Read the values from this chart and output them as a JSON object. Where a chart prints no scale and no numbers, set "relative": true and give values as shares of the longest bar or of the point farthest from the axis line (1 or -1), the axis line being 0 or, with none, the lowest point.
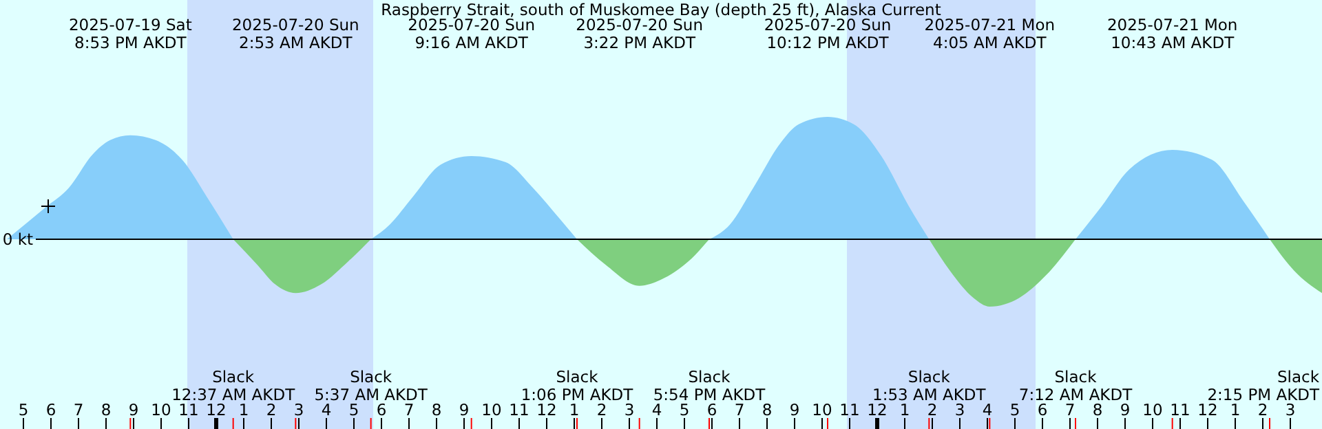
{
  "chart_data": {
    "type": "area",
    "relative": true,
    "title": "Raspberry Strait, south of Muskomee Bay (depth 25 ft), Alaska Current",
    "x": [
      "2025-07-19T16:24",
      "2025-07-19T17:48",
      "2025-07-19T18:39",
      "2025-07-19T19:30",
      "2025-07-19T20:09",
      "2025-07-19T20:53",
      "2025-07-19T21:48",
      "2025-07-19T22:48",
      "2025-07-19T23:39",
      "2025-07-20T00:37",
      "2025-07-20T01:30",
      "2025-07-20T02:09",
      "2025-07-20T02:53",
      "2025-07-20T03:48",
      "2025-07-20T04:48",
      "2025-07-20T05:37",
      "2025-07-20T06:18",
      "2025-07-20T07:09",
      "2025-07-20T08:09",
      "2025-07-20T09:16",
      "2025-07-20T10:30",
      "2025-07-20T11:30",
      "2025-07-20T12:30",
      "2025-07-20T13:06",
      "2025-07-20T14:09",
      "2025-07-20T15:22",
      "2025-07-20T16:09",
      "2025-07-20T17:09",
      "2025-07-20T17:54",
      "2025-07-20T18:39",
      "2025-07-20T19:30",
      "2025-07-20T20:30",
      "2025-07-20T21:09",
      "2025-07-20T22:12",
      "2025-07-20T23:09",
      "2025-07-21T00:09",
      "2025-07-21T01:09",
      "2025-07-21T01:53",
      "2025-07-21T02:39",
      "2025-07-21T03:30",
      "2025-07-21T04:05",
      "2025-07-21T05:09",
      "2025-07-21T06:09",
      "2025-07-21T07:12",
      "2025-07-21T08:09",
      "2025-07-21T09:09",
      "2025-07-21T10:43",
      "2025-07-21T12:09",
      "2025-07-21T13:18",
      "2025-07-21T14:15",
      "2025-07-21T15:09",
      "2025-07-21T16:09"
    ],
    "series": [
      {
        "color": "#87cefa",
        "values": [
          0,
          0.26,
          0.42,
          0.69,
          0.81,
          0.85,
          0.81,
          0.64,
          0.35,
          0,
          null,
          null,
          null,
          null,
          null,
          0,
          0.12,
          0.35,
          0.61,
          0.68,
          0.63,
          0.42,
          0.16,
          0,
          null,
          null,
          null,
          null,
          0,
          0.12,
          0.42,
          0.79,
          0.94,
          1,
          0.94,
          0.68,
          0.27,
          0,
          null,
          null,
          null,
          null,
          null,
          0,
          0.27,
          0.57,
          0.73,
          0.65,
          0.31,
          0,
          null,
          null
        ]
      },
      {
        "color": "#7fcf7f",
        "values": [
          null,
          null,
          null,
          null,
          null,
          null,
          null,
          null,
          null,
          0,
          -0.21,
          -0.37,
          -0.44,
          -0.37,
          -0.18,
          0,
          null,
          null,
          null,
          null,
          null,
          null,
          null,
          0,
          -0.21,
          -0.38,
          -0.33,
          -0.18,
          0,
          null,
          null,
          null,
          null,
          null,
          null,
          null,
          null,
          0,
          -0.26,
          -0.48,
          -0.55,
          -0.48,
          -0.29,
          0,
          null,
          null,
          null,
          null,
          null,
          0,
          -0.26,
          -0.44
        ]
      }
    ],
    "xlim": [
      "2025-07-19T16:09",
      "2025-07-21T16:09"
    ],
    "xticks": [
      {
        "value": "2025-07-19T17:00",
        "label": "5"
      },
      {
        "value": "2025-07-19T18:00",
        "label": "6"
      },
      {
        "value": "2025-07-19T19:00",
        "label": "7"
      },
      {
        "value": "2025-07-19T20:00",
        "label": "8"
      },
      {
        "value": "2025-07-19T21:00",
        "label": "9"
      },
      {
        "value": "2025-07-19T22:00",
        "label": "10"
      },
      {
        "value": "2025-07-19T23:00",
        "label": "11"
      },
      {
        "value": "2025-07-20T00:00",
        "label": "12"
      },
      {
        "value": "2025-07-20T01:00",
        "label": "1"
      },
      {
        "value": "2025-07-20T02:00",
        "label": "2"
      },
      {
        "value": "2025-07-20T03:00",
        "label": "3"
      },
      {
        "value": "2025-07-20T04:00",
        "label": "4"
      },
      {
        "value": "2025-07-20T05:00",
        "label": "5"
      },
      {
        "value": "2025-07-20T06:00",
        "label": "6"
      },
      {
        "value": "2025-07-20T07:00",
        "label": "7"
      },
      {
        "value": "2025-07-20T08:00",
        "label": "8"
      },
      {
        "value": "2025-07-20T09:00",
        "label": "9"
      },
      {
        "value": "2025-07-20T10:00",
        "label": "10"
      },
      {
        "value": "2025-07-20T11:00",
        "label": "11"
      },
      {
        "value": "2025-07-20T12:00",
        "label": "12"
      },
      {
        "value": "2025-07-20T13:00",
        "label": "1"
      },
      {
        "value": "2025-07-20T14:00",
        "label": "2"
      },
      {
        "value": "2025-07-20T15:00",
        "label": "3"
      },
      {
        "value": "2025-07-20T16:00",
        "label": "4"
      },
      {
        "value": "2025-07-20T17:00",
        "label": "5"
      },
      {
        "value": "2025-07-20T18:00",
        "label": "6"
      },
      {
        "value": "2025-07-20T19:00",
        "label": "7"
      },
      {
        "value": "2025-07-20T20:00",
        "label": "8"
      },
      {
        "value": "2025-07-20T21:00",
        "label": "9"
      },
      {
        "value": "2025-07-20T22:00",
        "label": "10"
      },
      {
        "value": "2025-07-20T23:00",
        "label": "11"
      },
      {
        "value": "2025-07-21T00:00",
        "label": "12"
      },
      {
        "value": "2025-07-21T01:00",
        "label": "1"
      },
      {
        "value": "2025-07-21T02:00",
        "label": "2"
      },
      {
        "value": "2025-07-21T03:00",
        "label": "3"
      },
      {
        "value": "2025-07-21T04:00",
        "label": "4"
      },
      {
        "value": "2025-07-21T05:00",
        "label": "5"
      },
      {
        "value": "2025-07-21T06:00",
        "label": "6"
      },
      {
        "value": "2025-07-21T07:00",
        "label": "7"
      },
      {
        "value": "2025-07-21T08:00",
        "label": "8"
      },
      {
        "value": "2025-07-21T09:00",
        "label": "9"
      },
      {
        "value": "2025-07-21T10:00",
        "label": "10"
      },
      {
        "value": "2025-07-21T11:00",
        "label": "11"
      },
      {
        "value": "2025-07-21T12:00",
        "label": "12"
      },
      {
        "value": "2025-07-21T13:00",
        "label": "1"
      },
      {
        "value": "2025-07-21T14:00",
        "label": "2"
      },
      {
        "value": "2025-07-21T15:00",
        "label": "3"
      }
    ],
    "bands": [
      {
        "axis": "x",
        "from": "2025-07-19T22:57",
        "to": "2025-07-20T05:42",
        "color": "#cce0fd"
      },
      {
        "axis": "x",
        "from": "2025-07-20T22:54",
        "to": "2025-07-21T05:45",
        "color": "#cce0fd"
      }
    ],
    "ref_lines": [
      {
        "axis": "y",
        "value": 0,
        "label": "0 kt",
        "color": "#000000"
      }
    ],
    "annotations": [
      "2025-07-19 Sat\n8:53 PM AKDT",
      "Slack\n12:37 AM AKDT",
      "2025-07-20 Sun\n2:53 AM AKDT",
      "Slack\n5:37 AM AKDT",
      "2025-07-20 Sun\n9:16 AM AKDT",
      "Slack\n1:06 PM AKDT",
      "2025-07-20 Sun\n3:22 PM AKDT",
      "Slack\n5:54 PM AKDT",
      "2025-07-20 Sun\n10:12 PM AKDT",
      "Slack\n1:53 AM AKDT",
      "2025-07-21 Mon\n4:05 AM AKDT",
      "Slack\n7:12 AM AKDT",
      "2025-07-21 Mon\n10:43 AM AKDT",
      "Slack\n2:15 PM AKDT"
    ]
  }
}
